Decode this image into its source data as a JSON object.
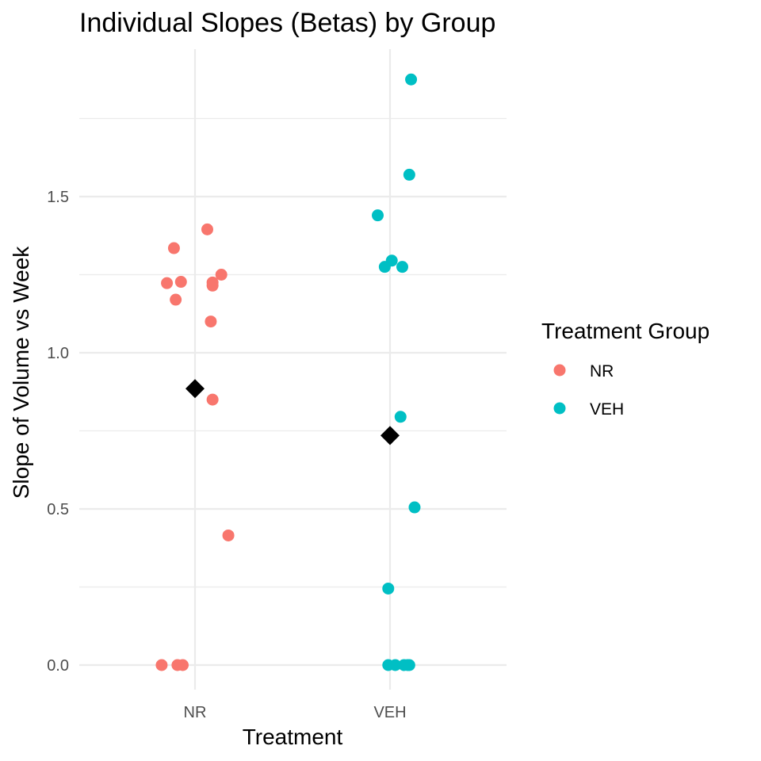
{
  "chart_data": {
    "type": "scatter",
    "title": "Individual Slopes (Betas) by Group",
    "xlabel": "Treatment",
    "ylabel": "Slope of Volume vs Week",
    "categories": [
      "NR",
      "VEH"
    ],
    "yticks": [
      "0.0",
      "0.5",
      "1.0",
      "1.5"
    ],
    "ylim": [
      -0.08,
      1.95
    ],
    "grid": true,
    "legend": {
      "title": "Treatment Group",
      "position": "right",
      "entries": [
        "NR",
        "VEH"
      ]
    },
    "colors": {
      "NR": "#F8766D",
      "VEH": "#00BFC4",
      "mean": "#000000"
    },
    "series": [
      {
        "name": "NR",
        "category": "NR",
        "points": [
          {
            "jitter": 0.07,
            "y": 1.395
          },
          {
            "jitter": -0.12,
            "y": 1.335
          },
          {
            "jitter": 0.15,
            "y": 1.25
          },
          {
            "jitter": -0.08,
            "y": 1.227
          },
          {
            "jitter": -0.16,
            "y": 1.223
          },
          {
            "jitter": 0.1,
            "y": 1.225
          },
          {
            "jitter": 0.1,
            "y": 1.215
          },
          {
            "jitter": -0.11,
            "y": 1.17
          },
          {
            "jitter": 0.09,
            "y": 1.1
          },
          {
            "jitter": 0.1,
            "y": 0.85
          },
          {
            "jitter": 0.19,
            "y": 0.415
          },
          {
            "jitter": -0.19,
            "y": 0.0
          },
          {
            "jitter": -0.1,
            "y": 0.0
          },
          {
            "jitter": -0.07,
            "y": 0.0
          }
        ],
        "mean": 0.885
      },
      {
        "name": "VEH",
        "category": "VEH",
        "points": [
          {
            "jitter": 0.12,
            "y": 1.875
          },
          {
            "jitter": 0.11,
            "y": 1.57
          },
          {
            "jitter": -0.07,
            "y": 1.44
          },
          {
            "jitter": 0.01,
            "y": 1.295
          },
          {
            "jitter": -0.03,
            "y": 1.275
          },
          {
            "jitter": 0.07,
            "y": 1.275
          },
          {
            "jitter": 0.06,
            "y": 0.795
          },
          {
            "jitter": 0.14,
            "y": 0.505
          },
          {
            "jitter": -0.01,
            "y": 0.245
          },
          {
            "jitter": -0.01,
            "y": 0.0
          },
          {
            "jitter": 0.03,
            "y": 0.0
          },
          {
            "jitter": 0.08,
            "y": 0.0
          },
          {
            "jitter": 0.1,
            "y": 0.0
          },
          {
            "jitter": 0.11,
            "y": 0.0
          }
        ],
        "mean": 0.735
      }
    ]
  }
}
